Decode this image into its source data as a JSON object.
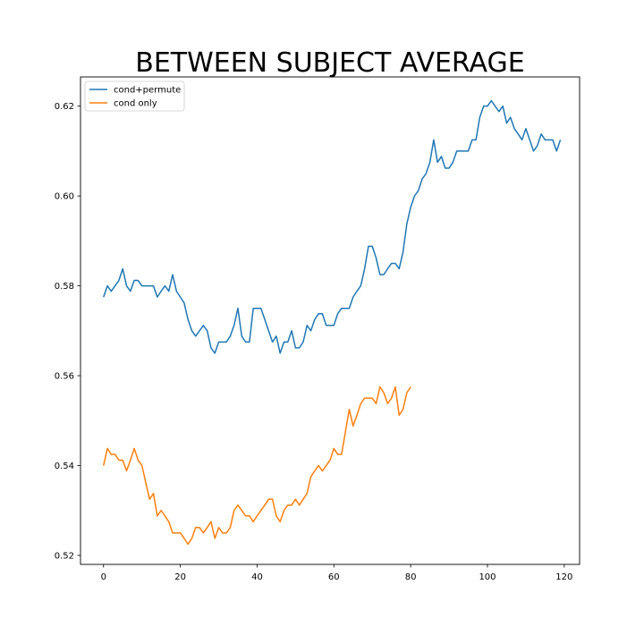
{
  "chart_data": {
    "type": "line",
    "title": "BETWEEN SUBJECT AVERAGE",
    "xlabel": "",
    "ylabel": "",
    "xlim": [
      -6,
      124
    ],
    "ylim": [
      0.518,
      0.6265
    ],
    "xticks": [
      0,
      20,
      40,
      60,
      80,
      100,
      120
    ],
    "xtick_labels": [
      "0",
      "20",
      "40",
      "60",
      "80",
      "100",
      "120"
    ],
    "yticks": [
      0.52,
      0.54,
      0.56,
      0.58,
      0.6,
      0.62
    ],
    "ytick_labels": [
      "0.52",
      "0.54",
      "0.56",
      "0.58",
      "0.60",
      "0.62"
    ],
    "grid": false,
    "legend_position": "top-left",
    "series": [
      {
        "name": "cond+permute",
        "color": "#1f77b4",
        "x_start": 0,
        "values": [
          0.5775,
          0.58,
          0.5788,
          0.58,
          0.5812,
          0.5838,
          0.58,
          0.5788,
          0.5812,
          0.5812,
          0.58,
          0.58,
          0.58,
          0.58,
          0.5775,
          0.5788,
          0.58,
          0.5788,
          0.5825,
          0.5788,
          0.5775,
          0.5762,
          0.5725,
          0.57,
          0.5688,
          0.57,
          0.5712,
          0.57,
          0.5662,
          0.565,
          0.5675,
          0.5675,
          0.5675,
          0.5688,
          0.5712,
          0.575,
          0.5688,
          0.5675,
          0.5675,
          0.575,
          0.575,
          0.575,
          0.5725,
          0.57,
          0.5675,
          0.5688,
          0.565,
          0.5675,
          0.5675,
          0.57,
          0.5662,
          0.5662,
          0.5675,
          0.5712,
          0.57,
          0.5725,
          0.5738,
          0.5738,
          0.5712,
          0.5712,
          0.5712,
          0.5738,
          0.575,
          0.575,
          0.575,
          0.5775,
          0.5788,
          0.58,
          0.5838,
          0.5888,
          0.5888,
          0.5862,
          0.5825,
          0.5825,
          0.5838,
          0.585,
          0.585,
          0.5838,
          0.5875,
          0.5938,
          0.5975,
          0.6,
          0.6012,
          0.6038,
          0.605,
          0.6075,
          0.6125,
          0.6075,
          0.6088,
          0.6062,
          0.6062,
          0.6075,
          0.61,
          0.61,
          0.61,
          0.61,
          0.6125,
          0.6125,
          0.6175,
          0.62,
          0.62,
          0.6212,
          0.62,
          0.6188,
          0.62,
          0.6162,
          0.6175,
          0.615,
          0.6138,
          0.6125,
          0.615,
          0.6125,
          0.61,
          0.6112,
          0.6138,
          0.6125,
          0.6125,
          0.6125,
          0.61,
          0.6125
        ]
      },
      {
        "name": "cond only",
        "color": "#ff7f0e",
        "x_start": 0,
        "values": [
          0.54,
          0.5438,
          0.5425,
          0.5425,
          0.5412,
          0.5412,
          0.5388,
          0.5412,
          0.5438,
          0.5412,
          0.54,
          0.5362,
          0.5325,
          0.5338,
          0.5288,
          0.53,
          0.5288,
          0.5275,
          0.525,
          0.525,
          0.525,
          0.5238,
          0.5225,
          0.5238,
          0.5262,
          0.5262,
          0.525,
          0.5262,
          0.5275,
          0.5238,
          0.5262,
          0.525,
          0.525,
          0.5262,
          0.53,
          0.5312,
          0.53,
          0.5288,
          0.5288,
          0.5275,
          0.5288,
          0.53,
          0.5312,
          0.5325,
          0.5325,
          0.5288,
          0.5275,
          0.53,
          0.5312,
          0.5312,
          0.5325,
          0.5312,
          0.5325,
          0.5338,
          0.5375,
          0.5388,
          0.54,
          0.5388,
          0.54,
          0.5412,
          0.5438,
          0.5425,
          0.5425,
          0.5475,
          0.5525,
          0.5488,
          0.5512,
          0.5538,
          0.555,
          0.555,
          0.555,
          0.5538,
          0.5575,
          0.5562,
          0.5538,
          0.555,
          0.5575,
          0.5512,
          0.5525,
          0.5562,
          0.5575
        ]
      }
    ]
  }
}
